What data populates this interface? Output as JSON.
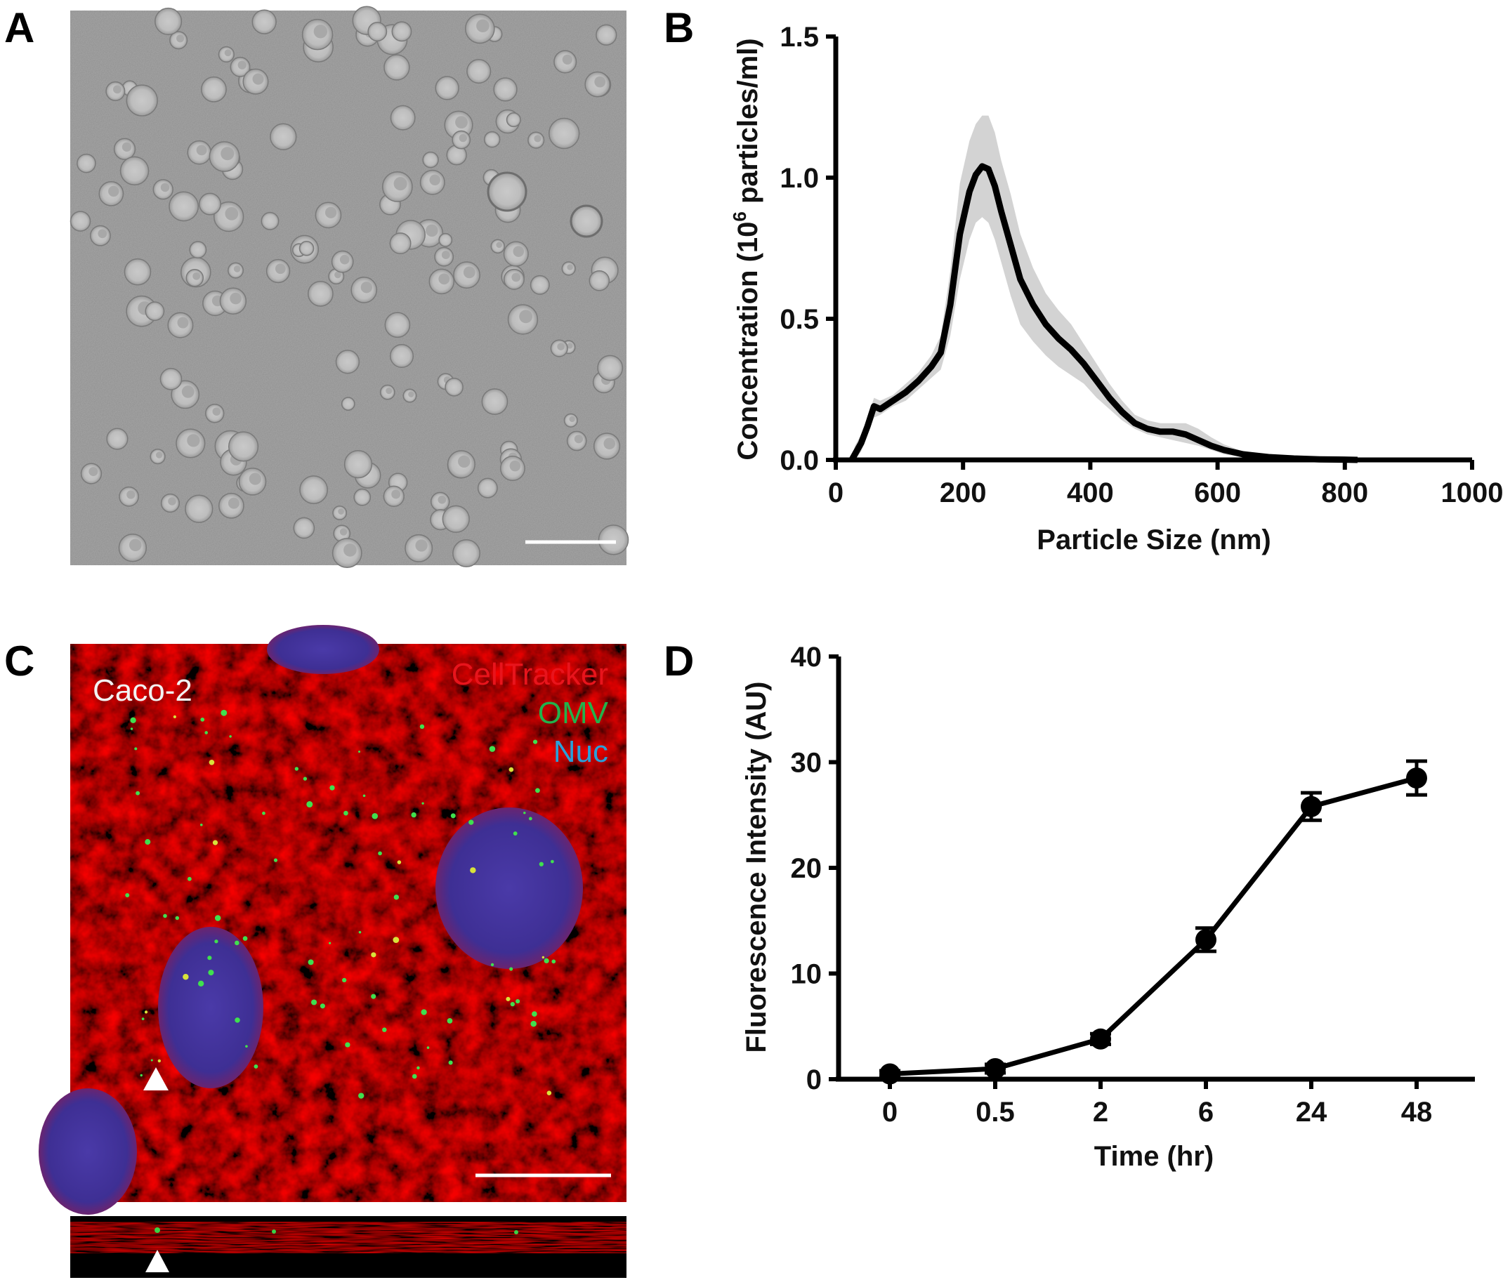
{
  "panels": {
    "a": {
      "letter": "A"
    },
    "b": {
      "letter": "B"
    },
    "c": {
      "letter": "C",
      "cell_label": "Caco-2",
      "legend": [
        {
          "text": "CellTracker",
          "color": "#e8141c"
        },
        {
          "text": "OMV",
          "color": "#22b24c"
        },
        {
          "text": "Nuc",
          "color": "#2a9fd8"
        }
      ]
    },
    "d": {
      "letter": "D"
    }
  },
  "chart_data": [
    {
      "panel": "B",
      "type": "line",
      "xlabel": "Particle Size (nm)",
      "ylabel_main": "Concentration (10",
      "ylabel_sup": "6",
      "ylabel_rest": " particles/ml)",
      "xlim": [
        0,
        1000
      ],
      "ylim": [
        0,
        1.5
      ],
      "xticks": [
        0,
        200,
        400,
        600,
        800,
        1000
      ],
      "yticks": [
        0.0,
        0.5,
        1.0,
        1.5
      ],
      "xtick_labels": [
        "0",
        "200",
        "400",
        "600",
        "800",
        "1000"
      ],
      "ytick_labels": [
        "0.0",
        "0.5",
        "1.0",
        "1.5"
      ],
      "shaded_band_color": "#d3d3d3",
      "line_color": "#000000",
      "series": [
        {
          "x": [
            25,
            30,
            40,
            50,
            60,
            70,
            90,
            110,
            130,
            150,
            165,
            180,
            195,
            210,
            220,
            230,
            240,
            250,
            260,
            275,
            290,
            310,
            330,
            350,
            370,
            390,
            410,
            430,
            450,
            470,
            490,
            510,
            530,
            550,
            570,
            590,
            610,
            640,
            680,
            720,
            760,
            800,
            820
          ],
          "y": [
            0.0,
            0.02,
            0.06,
            0.12,
            0.19,
            0.18,
            0.21,
            0.24,
            0.28,
            0.33,
            0.38,
            0.55,
            0.8,
            0.95,
            1.01,
            1.04,
            1.03,
            0.97,
            0.88,
            0.76,
            0.64,
            0.55,
            0.48,
            0.43,
            0.39,
            0.34,
            0.28,
            0.22,
            0.17,
            0.13,
            0.11,
            0.1,
            0.1,
            0.09,
            0.07,
            0.05,
            0.035,
            0.02,
            0.01,
            0.005,
            0.002,
            0.001,
            0.0
          ],
          "lower": [
            25,
            30,
            40,
            50,
            60,
            70,
            90,
            110,
            130,
            150,
            165,
            180,
            195,
            210,
            220,
            230,
            240,
            250,
            260,
            275,
            290,
            310,
            330,
            350,
            370,
            390,
            410,
            430,
            450,
            470,
            490,
            510,
            530,
            550,
            570,
            590,
            610,
            640,
            680,
            720,
            760,
            800,
            820
          ],
          "band_low": [
            0.0,
            0.0,
            0.03,
            0.09,
            0.15,
            0.16,
            0.19,
            0.21,
            0.25,
            0.29,
            0.32,
            0.44,
            0.64,
            0.78,
            0.84,
            0.86,
            0.84,
            0.78,
            0.7,
            0.58,
            0.48,
            0.42,
            0.37,
            0.33,
            0.3,
            0.27,
            0.22,
            0.18,
            0.14,
            0.11,
            0.09,
            0.08,
            0.07,
            0.06,
            0.05,
            0.035,
            0.02,
            0.01,
            0.005,
            0.002,
            0.001,
            0.0,
            0.0
          ],
          "band_high": [
            0.0,
            0.05,
            0.09,
            0.15,
            0.22,
            0.21,
            0.23,
            0.27,
            0.31,
            0.37,
            0.44,
            0.67,
            0.98,
            1.13,
            1.19,
            1.22,
            1.22,
            1.16,
            1.06,
            0.94,
            0.8,
            0.68,
            0.59,
            0.53,
            0.48,
            0.41,
            0.34,
            0.27,
            0.21,
            0.16,
            0.14,
            0.13,
            0.13,
            0.13,
            0.11,
            0.08,
            0.055,
            0.03,
            0.015,
            0.008,
            0.004,
            0.002,
            0.0
          ]
        }
      ]
    },
    {
      "panel": "D",
      "type": "line",
      "xlabel": "Time (hr)",
      "ylabel": "Fluorescence Intensity (AU)",
      "categories": [
        "0",
        "0.5",
        "2",
        "6",
        "24",
        "48"
      ],
      "ylim": [
        0,
        40
      ],
      "yticks": [
        0,
        10,
        20,
        30,
        40
      ],
      "ytick_labels": [
        "0",
        "10",
        "20",
        "30",
        "40"
      ],
      "series": [
        {
          "values": [
            0.5,
            1.0,
            3.8,
            13.2,
            25.8,
            28.5
          ],
          "errors": [
            0.3,
            0.4,
            0.5,
            1.1,
            1.3,
            1.6
          ]
        }
      ]
    }
  ]
}
